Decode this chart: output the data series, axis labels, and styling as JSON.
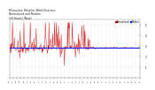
{
  "title": "Milwaukee Weather Wind Direction\nNormalized and Median\n(24 Hours) (New)",
  "title_fontsize": 2.2,
  "bg_color": "#ffffff",
  "plot_bg_color": "#ffffff",
  "grid_color": "#bbbbbb",
  "median_value": 2.8,
  "median_color": "#0000ff",
  "median_linewidth": 0.7,
  "data_color": "#cc0000",
  "data_linewidth": 0.3,
  "ylim": [
    0,
    5.5
  ],
  "yticks": [
    1,
    2,
    3,
    4,
    5
  ],
  "ytick_labels": [
    "1",
    "2",
    "3",
    "4",
    "5"
  ],
  "legend_labels": [
    "Normalized",
    "Median"
  ],
  "legend_colors": [
    "#cc0000",
    "#0000ff"
  ],
  "n_points": 288,
  "seed": 7,
  "n_xticks": 36,
  "xtick_fontsize": 1.4,
  "ytick_fontsize": 2.0,
  "legend_fontsize": 1.8
}
